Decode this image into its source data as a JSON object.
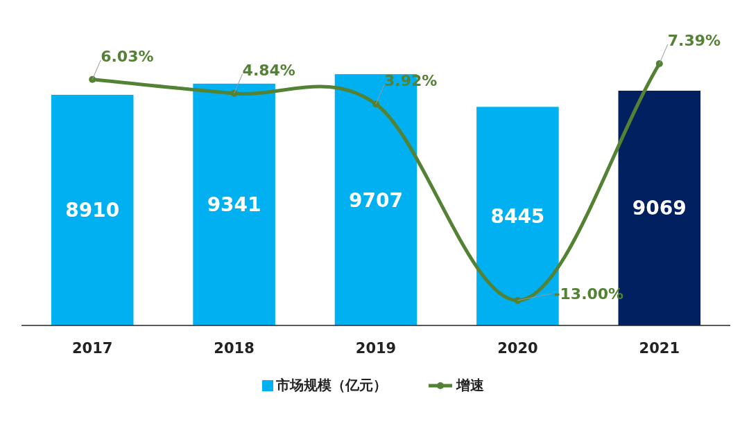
{
  "chart_data": {
    "type": "bar",
    "categories": [
      "2017",
      "2018",
      "2019",
      "2020",
      "2021"
    ],
    "series": [
      {
        "name": "市场规模（亿元）",
        "colors": [
          "#00b0f0",
          "#00b0f0",
          "#00b0f0",
          "#00b0f0",
          "#002060"
        ],
        "values": [
          8910,
          9341,
          9707,
          8445,
          9069
        ]
      },
      {
        "name": "增速",
        "type": "line",
        "axis": "y2",
        "color": "#548235",
        "values": [
          6.03,
          4.84,
          3.92,
          -13.0,
          7.39
        ],
        "value_labels": [
          "6.03%",
          "4.84%",
          "3.92%",
          "-13.00%",
          "7.39%"
        ]
      }
    ],
    "data_labels": true,
    "legend": "bottom",
    "grid": false,
    "marker": "circle",
    "line_style": "solid"
  }
}
